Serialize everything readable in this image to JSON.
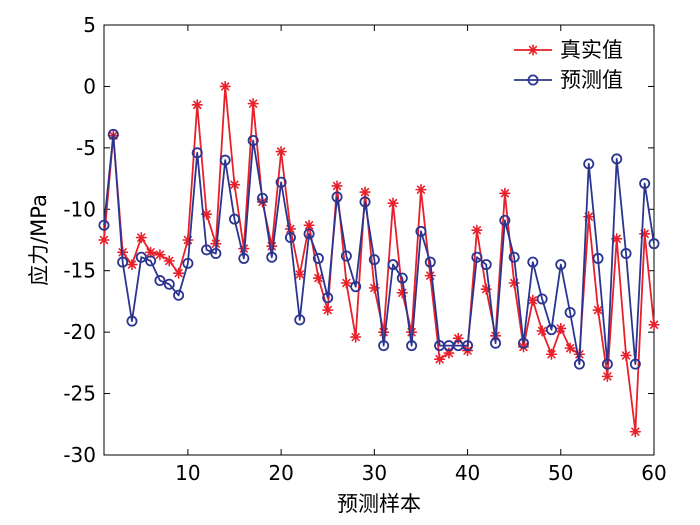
{
  "chart_data": {
    "type": "line",
    "xlabel": "预测样本",
    "ylabel": "应力/MPa",
    "xlim": [
      1,
      60
    ],
    "ylim": [
      -30,
      5
    ],
    "xticks": [
      10,
      20,
      30,
      40,
      50,
      60
    ],
    "yticks": [
      5,
      0,
      -5,
      -10,
      -15,
      -20,
      -25,
      -30
    ],
    "ytick_labels": [
      "5",
      "0",
      "-5",
      "-10",
      "-15",
      "-20",
      "-25",
      "-30"
    ],
    "legend_position": "top-right",
    "grid": false,
    "x": [
      1,
      2,
      3,
      4,
      5,
      6,
      7,
      8,
      9,
      10,
      11,
      12,
      13,
      14,
      15,
      16,
      17,
      18,
      19,
      20,
      21,
      22,
      23,
      24,
      25,
      26,
      27,
      28,
      29,
      30,
      31,
      32,
      33,
      34,
      35,
      36,
      37,
      38,
      39,
      40,
      41,
      42,
      43,
      44,
      45,
      46,
      47,
      48,
      49,
      50,
      51,
      52,
      53,
      54,
      55,
      56,
      57,
      58,
      59,
      60
    ],
    "series": [
      {
        "name": "真实值",
        "color": "#e8202a",
        "marker": "asterisk",
        "values": [
          -12.5,
          -4.0,
          -13.5,
          -14.5,
          -12.3,
          -13.5,
          -13.7,
          -14.2,
          -15.2,
          -12.5,
          -1.5,
          -10.4,
          -12.8,
          0.0,
          -8.0,
          -13.2,
          -1.4,
          -9.4,
          -13.0,
          -5.3,
          -11.6,
          -15.3,
          -11.3,
          -15.6,
          -18.2,
          -8.1,
          -16.0,
          -20.4,
          -8.6,
          -16.4,
          -20.0,
          -9.5,
          -16.8,
          -20.0,
          -8.4,
          -15.4,
          -22.2,
          -21.7,
          -20.5,
          -21.5,
          -11.7,
          -16.5,
          -20.3,
          -8.7,
          -16.0,
          -21.2,
          -17.4,
          -19.9,
          -21.8,
          -19.7,
          -21.3,
          -21.8,
          -10.6,
          -18.2,
          -23.6,
          -12.4,
          -21.9,
          -28.1,
          -12.0,
          -19.4
        ]
      },
      {
        "name": "预测值",
        "color": "#2b3590",
        "marker": "circle",
        "values": [
          -11.3,
          -3.9,
          -14.3,
          -19.1,
          -13.9,
          -14.2,
          -15.8,
          -16.1,
          -17.0,
          -14.4,
          -5.4,
          -13.3,
          -13.6,
          -6.0,
          -10.8,
          -14.0,
          -4.4,
          -9.1,
          -13.9,
          -7.8,
          -12.3,
          -19.0,
          -12.0,
          -14.0,
          -17.2,
          -9.0,
          -13.8,
          -16.3,
          -9.4,
          -14.1,
          -21.1,
          -14.5,
          -15.6,
          -21.1,
          -11.8,
          -14.3,
          -21.1,
          -21.1,
          -21.1,
          -21.1,
          -13.9,
          -14.5,
          -20.9,
          -10.9,
          -13.9,
          -20.9,
          -14.3,
          -17.3,
          -19.8,
          -14.5,
          -18.4,
          -22.6,
          -6.3,
          -14.0,
          -22.6,
          -5.9,
          -13.6,
          -22.6,
          -7.9,
          -12.8
        ]
      }
    ]
  }
}
